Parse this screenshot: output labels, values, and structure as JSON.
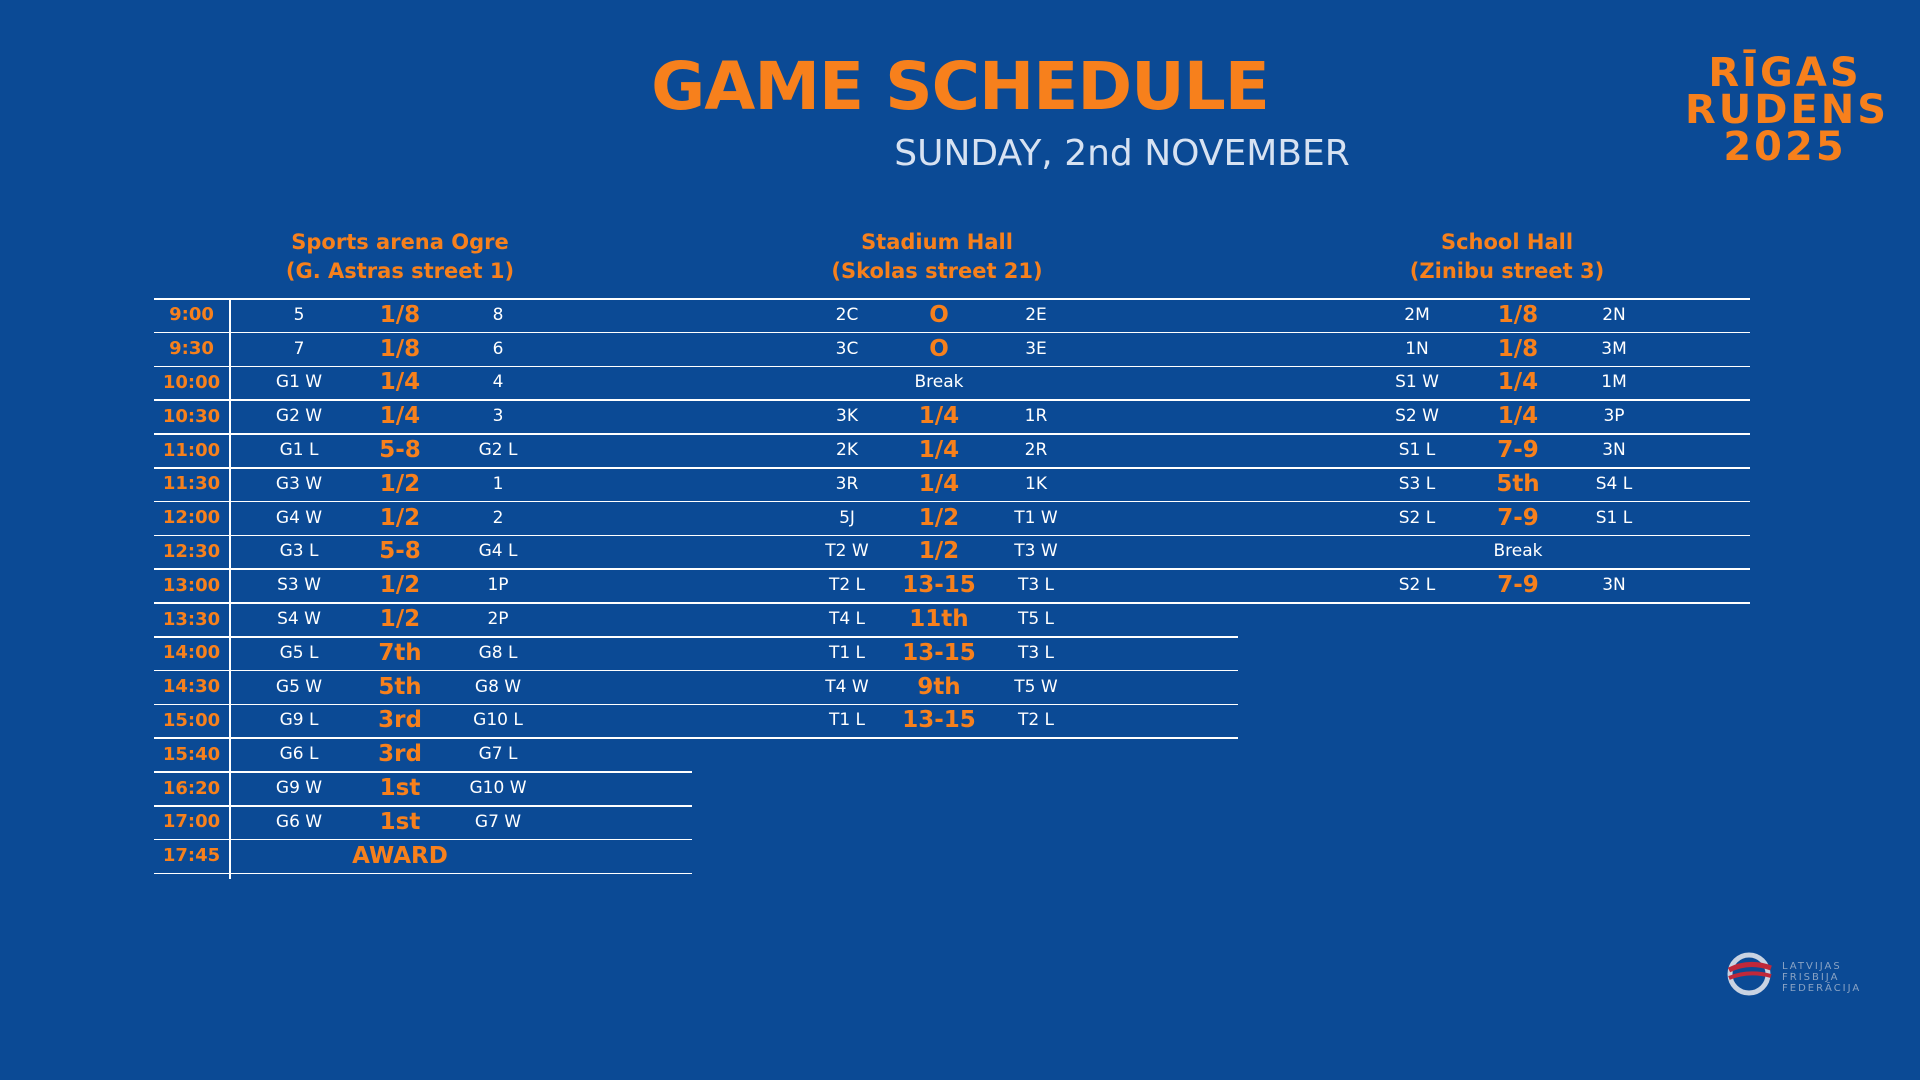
{
  "header": {
    "title": "GAME SCHEDULE",
    "subtitle": "SUNDAY, 2nd NOVEMBER",
    "logo": [
      "RĪGAS",
      "RUDENS",
      "2025"
    ]
  },
  "times": [
    "9:00",
    "9:30",
    "10:00",
    "10:30",
    "11:00",
    "11:30",
    "12:00",
    "12:30",
    "13:00",
    "13:30",
    "14:00",
    "14:30",
    "15:00",
    "15:40",
    "16:20",
    "17:00",
    "17:45"
  ],
  "venues": [
    {
      "name": "Sports arena Ogre",
      "address": "(G. Astras street 1)",
      "rows": [
        [
          "5",
          "1/8",
          "8"
        ],
        [
          "7",
          "1/8",
          "6"
        ],
        [
          "G1 W",
          "1/4",
          "4"
        ],
        [
          "G2 W",
          "1/4",
          "3"
        ],
        [
          "G1 L",
          "5-8",
          "G2 L"
        ],
        [
          "G3 W",
          "1/2",
          "1"
        ],
        [
          "G4 W",
          "1/2",
          "2"
        ],
        [
          "G3 L",
          "5-8",
          "G4 L"
        ],
        [
          "S3 W",
          "1/2",
          "1P"
        ],
        [
          "S4 W",
          "1/2",
          "2P"
        ],
        [
          "G5 L",
          "7th",
          "G8 L"
        ],
        [
          "G5 W",
          "5th",
          "G8 W"
        ],
        [
          "G9 L",
          "3rd",
          "G10 L"
        ],
        [
          "G6 L",
          "3rd",
          "G7 L"
        ],
        [
          "G9 W",
          "1st",
          "G10 W"
        ],
        [
          "G6 W",
          "1st",
          "G7 W"
        ],
        [
          "AWARD"
        ]
      ]
    },
    {
      "name": "Stadium Hall",
      "address": "(Skolas street 21)",
      "rows": [
        [
          "2C",
          "O",
          "2E"
        ],
        [
          "3C",
          "O",
          "3E"
        ],
        [
          "Break"
        ],
        [
          "3K",
          "1/4",
          "1R"
        ],
        [
          "2K",
          "1/4",
          "2R"
        ],
        [
          "3R",
          "1/4",
          "1K"
        ],
        [
          "5J",
          "1/2",
          "T1 W"
        ],
        [
          "T2 W",
          "1/2",
          "T3 W"
        ],
        [
          "T2 L",
          "13-15",
          "T3 L"
        ],
        [
          "T4 L",
          "11th",
          "T5 L"
        ],
        [
          "T1 L",
          "13-15",
          "T3 L"
        ],
        [
          "T4 W",
          "9th",
          "T5 W"
        ],
        [
          "T1 L",
          "13-15",
          "T2 L"
        ]
      ]
    },
    {
      "name": "School Hall",
      "address": "(Zinibu street 3)",
      "rows": [
        [
          "2M",
          "1/8",
          "2N"
        ],
        [
          "1N",
          "1/8",
          "3M"
        ],
        [
          "S1 W",
          "1/4",
          "1M"
        ],
        [
          "S2 W",
          "1/4",
          "3P"
        ],
        [
          "S1 L",
          "7-9",
          "3N"
        ],
        [
          "S3 L",
          "5th",
          "S4 L"
        ],
        [
          "S2 L",
          "7-9",
          "S1 L"
        ],
        [
          "Break"
        ],
        [
          "S2 L",
          "7-9",
          "3N"
        ]
      ]
    }
  ],
  "federation": [
    "LATVIJAS",
    "FRISBIJA",
    "FEDERĀCIJA"
  ]
}
